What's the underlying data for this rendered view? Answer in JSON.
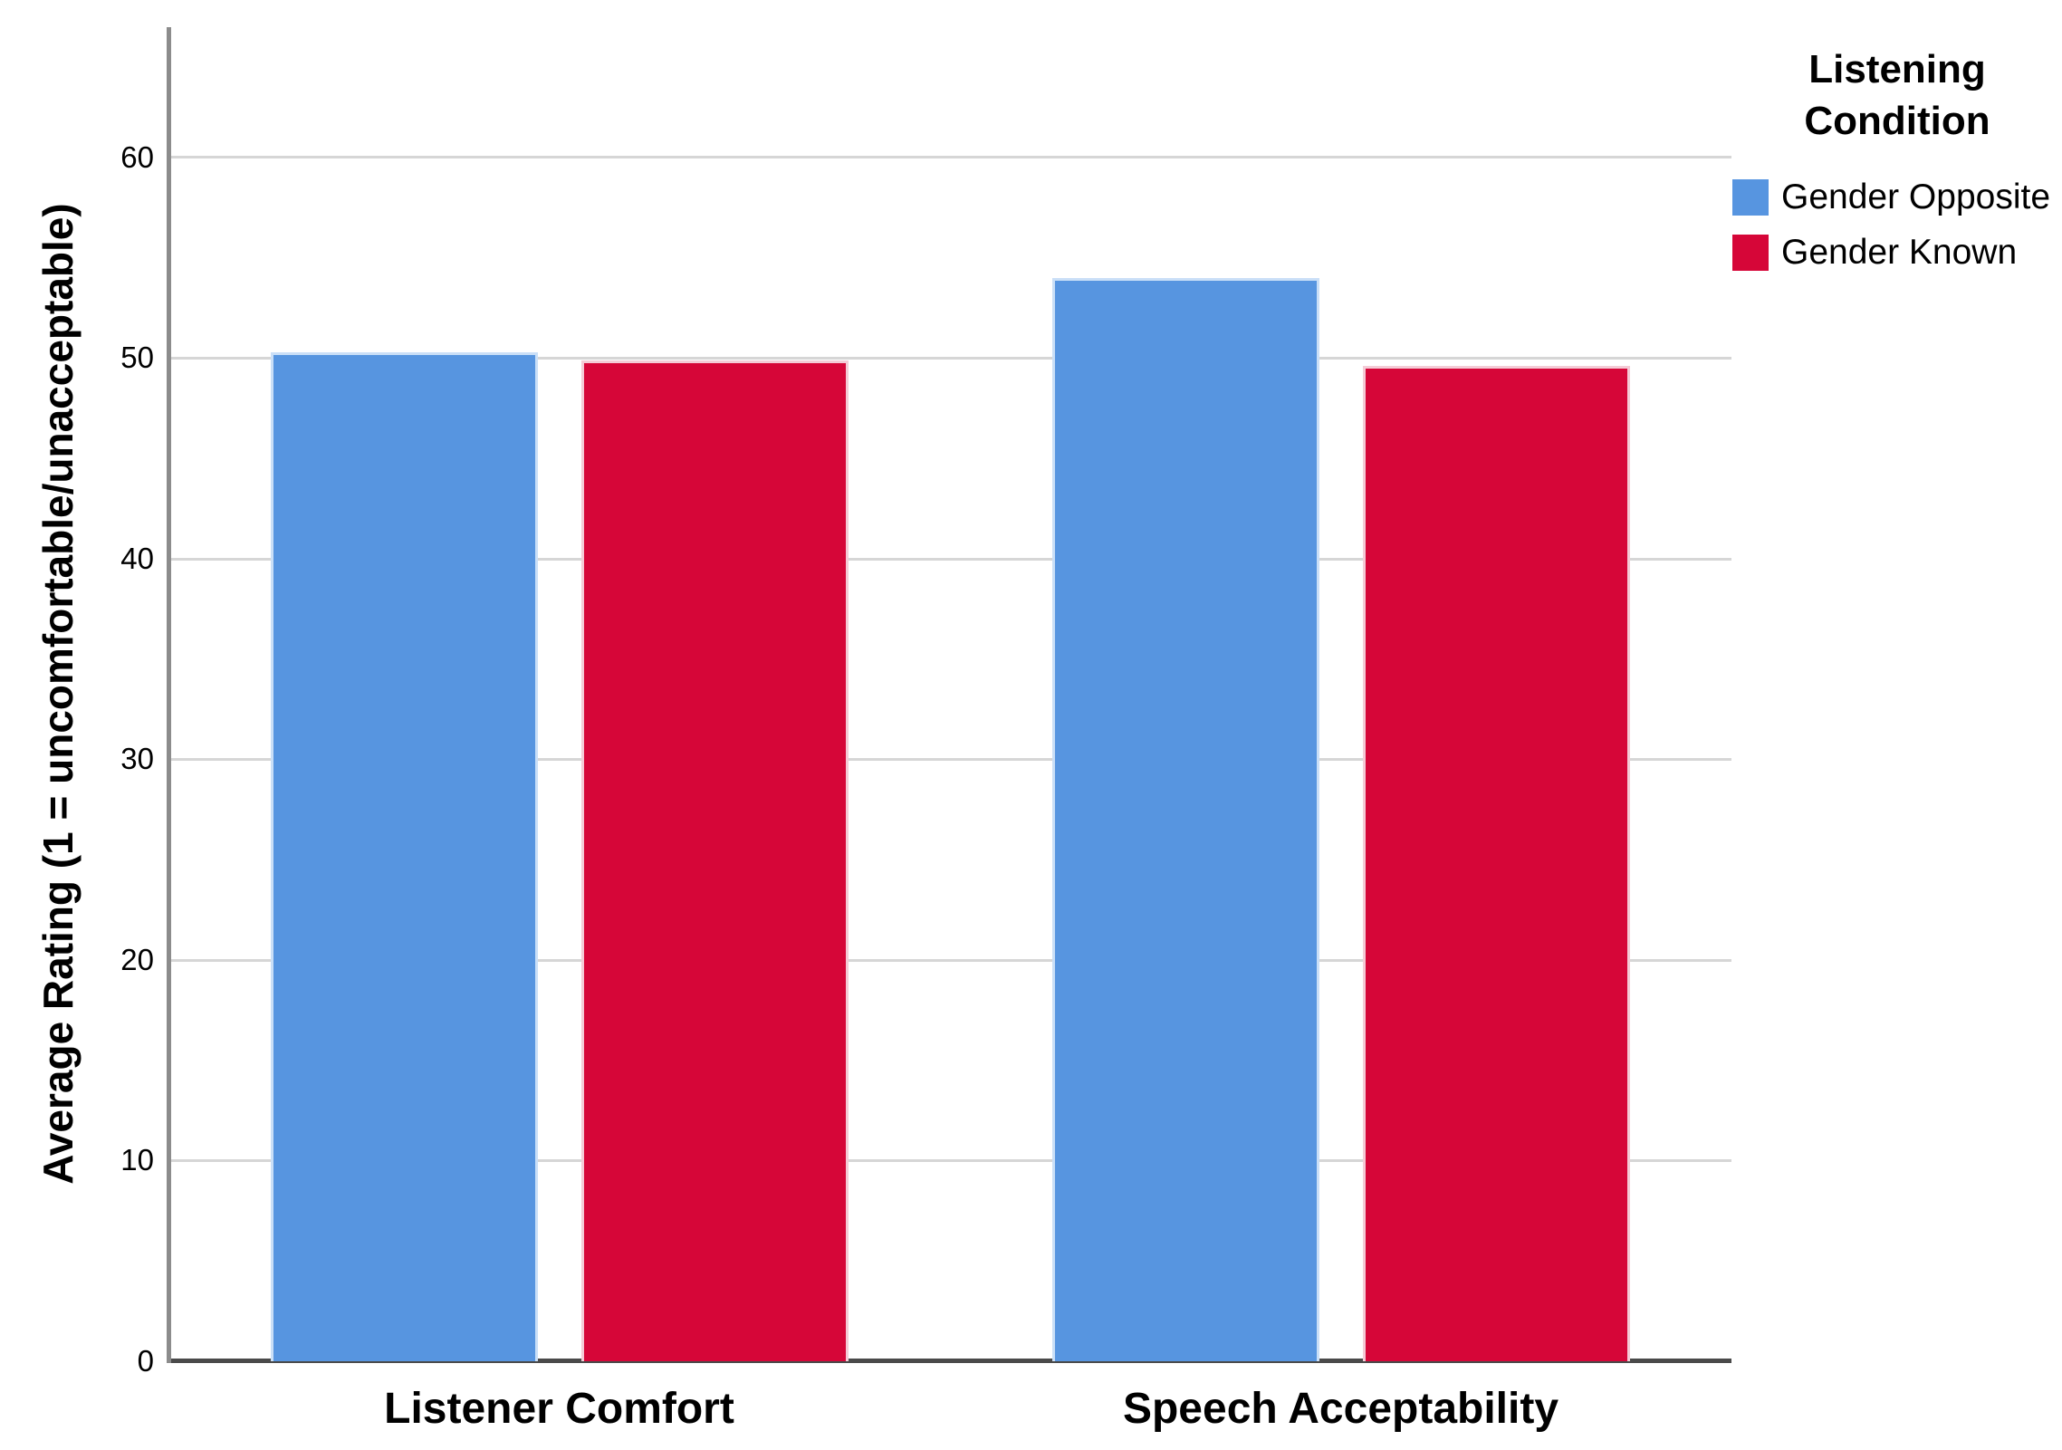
{
  "chart_data": {
    "type": "bar",
    "title": "",
    "categories": [
      "Listener Comfort",
      "Speech Acceptability"
    ],
    "series": [
      {
        "name": "Gender Opposite",
        "values": [
          50.3,
          54.0
        ],
        "color": "#5795E0",
        "edge_color": "#CADFF7"
      },
      {
        "name": "Gender Known",
        "values": [
          49.9,
          49.6
        ],
        "color": "#D60638",
        "edge_color": "#F4CBD6"
      }
    ],
    "xlabel": "",
    "ylabel": "Average Rating (1 = uncomfortable/unacceptable)",
    "ylim": [
      0,
      66.5
    ],
    "yticks": [
      0,
      10,
      20,
      30,
      40,
      50,
      60
    ],
    "grid": true,
    "legend_title": "Listening Condition",
    "legend_position": "top-right"
  },
  "legend": {
    "title_line1": "Listening",
    "title_line2": "Condition"
  },
  "colors": {
    "background": "#FFFFFF",
    "grid": "#D6D6D6",
    "y_axis_line": "#8C8C8C",
    "x_axis_line": "#4A4A4A",
    "text": "#000000"
  }
}
